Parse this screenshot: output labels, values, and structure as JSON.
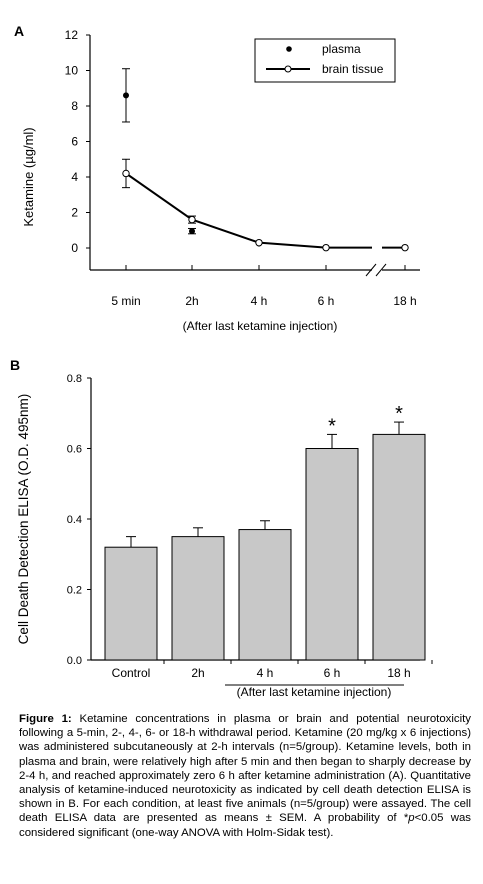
{
  "chart_data": [
    {
      "panel": "A",
      "type": "line",
      "ylabel": "Ketamine (µg/ml)",
      "xlabel": "(After last ketamine injection)",
      "categories": [
        "5 min",
        "2h",
        "4 h",
        "6 h",
        "18 h"
      ],
      "ylim": [
        0,
        12
      ],
      "yticks": [
        "0",
        "2",
        "4",
        "6",
        "8",
        "10",
        "12"
      ],
      "axis_break": "between 6 h and 18 h",
      "legend_position": "top-right",
      "series": [
        {
          "name": "plasma",
          "marker": "filled-circle",
          "line": false,
          "values": [
            8.6,
            0.95,
            0.25,
            0.02,
            0.02
          ],
          "sem": [
            1.5,
            0.15,
            0.05,
            0.0,
            0.0
          ]
        },
        {
          "name": "brain tissue",
          "marker": "open-circle",
          "line": true,
          "values": [
            4.2,
            1.6,
            0.3,
            0.02,
            0.02
          ],
          "sem": [
            0.8,
            0.2,
            0.05,
            0.0,
            0.0
          ]
        }
      ]
    },
    {
      "panel": "B",
      "type": "bar",
      "ylabel": "Cell Death Detection ELISA (O.D. 495nm)",
      "xlabel": "(After last ketamine injection)",
      "categories": [
        "Control",
        "2h",
        "4 h",
        "6 h",
        "18 h"
      ],
      "values": [
        0.32,
        0.35,
        0.37,
        0.6,
        0.64
      ],
      "sem": [
        0.03,
        0.025,
        0.025,
        0.04,
        0.035
      ],
      "significant": [
        "",
        "",
        "",
        "*",
        "*"
      ],
      "ylim": [
        0,
        0.8
      ],
      "yticks": [
        "0.0",
        "0.2",
        "0.4",
        "0.6",
        "0.8"
      ],
      "bar_color": "#c8c8c8"
    }
  ],
  "caption": {
    "label": "Figure 1:",
    "part1": " Ketamine concentrations in plasma or brain and potential neurotoxicity following a 5-min, 2-, 4-, 6- or 18-h withdrawal period. Ketamine (20 mg/kg x 6 injections) was administered subcutaneously at 2-h intervals (n=5/group). Ketamine levels, both in plasma and brain, were relatively high after 5 min and then began to sharply decrease by 2-4 h, and reached approximately zero 6 h after ketamine administration (A). Quantitative analysis of ketamine-induced neurotoxicity as indicated by cell death detection ELISA is shown in B. For each condition, at least five animals (n=5/group) were assayed. The cell death ELISA data are presented as means ± SEM. A probability of *",
    "p_italic": "p",
    "part2": "<0.05 was considered significant (one-way ANOVA with Holm-Sidak test)."
  }
}
